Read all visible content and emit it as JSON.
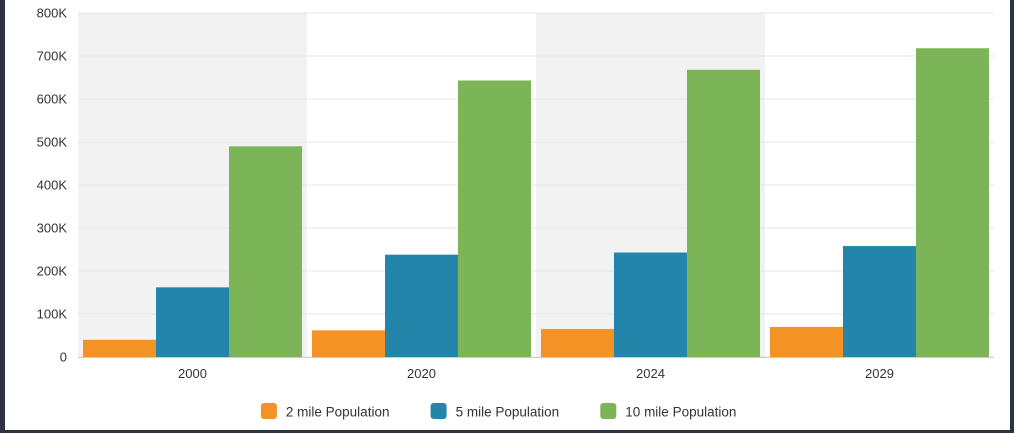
{
  "colors": {
    "series": [
      "#f39325",
      "#2285a9",
      "#7cb557"
    ],
    "band": "#f2f2f2",
    "grid": "#e6e6e6",
    "axis": "#cccccc"
  },
  "chart_data": {
    "type": "bar",
    "categories": [
      "2000",
      "2020",
      "2024",
      "2029"
    ],
    "series": [
      {
        "name": "2 mile Population",
        "values": [
          40000,
          62000,
          65000,
          70000
        ]
      },
      {
        "name": "5 mile Population",
        "values": [
          162000,
          238000,
          243000,
          258000
        ]
      },
      {
        "name": "10 mile Population",
        "values": [
          490000,
          643000,
          668000,
          718000
        ]
      }
    ],
    "y_ticks": [
      "0",
      "100K",
      "200K",
      "300K",
      "400K",
      "500K",
      "600K",
      "700K",
      "800K"
    ],
    "ylim": [
      0,
      800000
    ],
    "grid": true,
    "legend_position": "bottom-center",
    "title": "",
    "xlabel": "",
    "ylabel": ""
  }
}
